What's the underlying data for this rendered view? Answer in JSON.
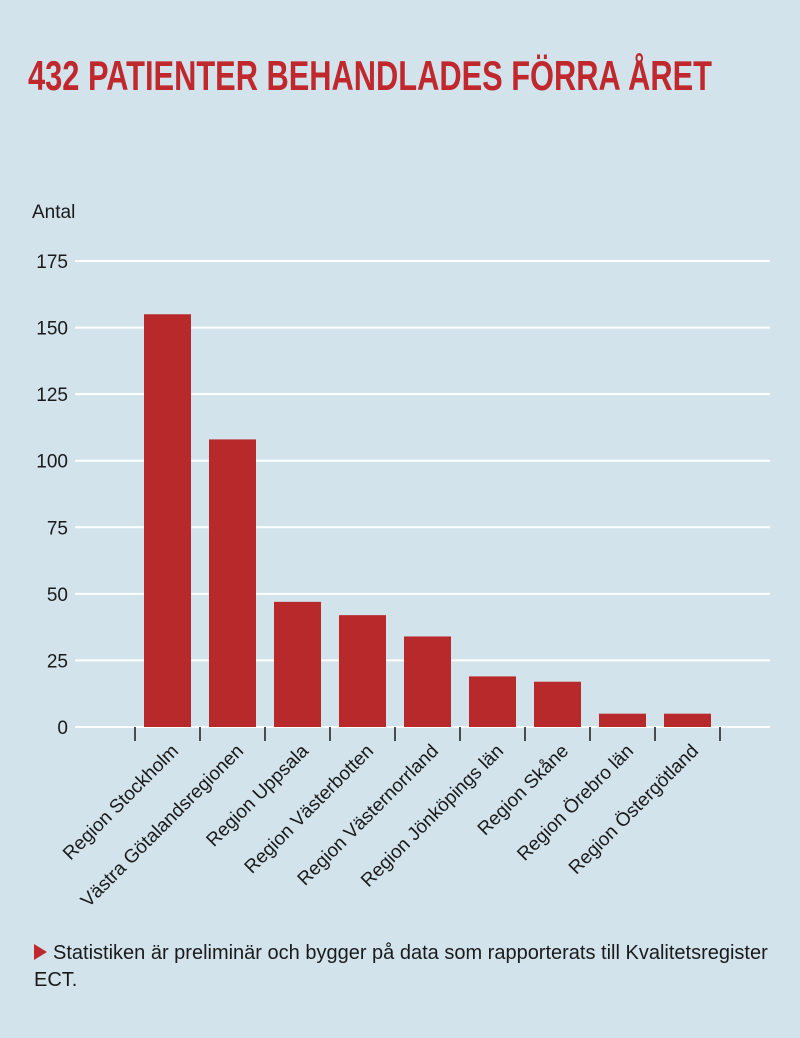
{
  "chart_data": {
    "type": "bar",
    "title": "432 PATIENTER BEHANDLADES FÖRRA ÅRET",
    "y_label": "Antal",
    "categories": [
      "Region Stockholm",
      "Västra Götalandsregionen",
      "Region Uppsala",
      "Region Västerbotten",
      "Region Västernorrland",
      "Region Jönköpings län",
      "Region Skåne",
      "Region Örebro län",
      "Region Östergötland"
    ],
    "values": [
      155,
      108,
      47,
      42,
      34,
      19,
      17,
      5,
      5
    ],
    "color": "#b7292b",
    "ylim": [
      0,
      175
    ],
    "yticks": [
      0,
      25,
      50,
      75,
      100,
      125,
      150,
      175
    ],
    "grid": true,
    "note": "Statistiken är preliminär och bygger på data som rapporterats till Kvalitetsregister ECT."
  }
}
